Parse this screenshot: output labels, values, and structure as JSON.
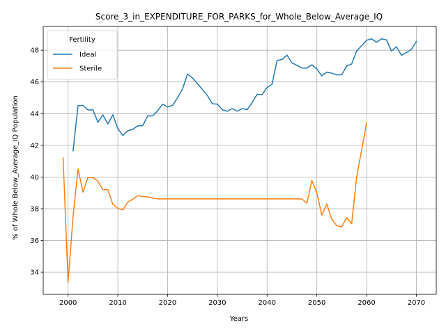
{
  "chart_data": {
    "type": "line",
    "title": "Score_3_in_EXPENDITURE_FOR_PARKS_for_Whole_Below_Average_IQ",
    "xlabel": "Years",
    "ylabel": "% of Whole Below_Average_IQ Population",
    "xlim": [
      1995,
      2074
    ],
    "ylim": [
      32.6,
      49.5
    ],
    "xticks": [
      2000,
      2010,
      2020,
      2030,
      2040,
      2050,
      2060,
      2070
    ],
    "yticks": [
      34,
      36,
      38,
      40,
      42,
      44,
      46,
      48
    ],
    "grid": true,
    "legend": {
      "title": "Fertility",
      "position": "upper-left"
    },
    "series": [
      {
        "name": "Ideal",
        "color": "#1f77b4",
        "x": [
          2001,
          2002,
          2003,
          2004,
          2005,
          2006,
          2007,
          2008,
          2009,
          2010,
          2011,
          2012,
          2013,
          2014,
          2015,
          2016,
          2017,
          2018,
          2019,
          2020,
          2021,
          2022,
          2023,
          2024,
          2025,
          2026,
          2027,
          2028,
          2029,
          2030,
          2031,
          2032,
          2033,
          2034,
          2035,
          2036,
          2037,
          2038,
          2039,
          2040,
          2041,
          2042,
          2043,
          2044,
          2045,
          2046,
          2047,
          2048,
          2049,
          2050,
          2051,
          2052,
          2053,
          2054,
          2055,
          2056,
          2057,
          2058,
          2059,
          2060,
          2061,
          2062,
          2063,
          2064,
          2065,
          2066,
          2067,
          2068,
          2069,
          2070
        ],
        "values": [
          41.65,
          44.5,
          44.52,
          44.23,
          44.24,
          43.45,
          43.92,
          43.35,
          43.93,
          43.05,
          42.62,
          42.92,
          43.01,
          43.23,
          43.24,
          43.85,
          43.86,
          44.18,
          44.6,
          44.42,
          44.52,
          45.0,
          45.55,
          46.5,
          46.25,
          45.9,
          45.52,
          45.15,
          44.62,
          44.6,
          44.25,
          44.15,
          44.32,
          44.15,
          44.32,
          44.25,
          44.7,
          45.22,
          45.2,
          45.65,
          45.85,
          47.35,
          47.42,
          47.69,
          47.2,
          47.05,
          46.88,
          46.87,
          47.08,
          46.82,
          46.38,
          46.62,
          46.55,
          46.45,
          46.45,
          47.0,
          47.13,
          47.95,
          48.28,
          48.63,
          48.72,
          48.5,
          48.72,
          48.65,
          47.95,
          48.22,
          47.68,
          47.85,
          48.05,
          48.55
        ]
      },
      {
        "name": "Sterile",
        "color": "#ff7f0e",
        "x": [
          1999,
          2000,
          2001,
          2002,
          2003,
          2004,
          2005,
          2006,
          2007,
          2008,
          2009,
          2010,
          2011,
          2012,
          2013,
          2014,
          2015,
          2016,
          2017,
          2018,
          2019,
          2020,
          2021,
          2022,
          2023,
          2024,
          2025,
          2026,
          2027,
          2028,
          2029,
          2030,
          2031,
          2032,
          2033,
          2034,
          2035,
          2036,
          2037,
          2038,
          2039,
          2040,
          2041,
          2042,
          2043,
          2044,
          2045,
          2046,
          2047,
          2048,
          2049,
          2050,
          2051,
          2052,
          2053,
          2054,
          2055,
          2056,
          2057,
          2058,
          2059,
          2060
        ],
        "values": [
          41.2,
          33.35,
          37.5,
          40.5,
          39.05,
          39.98,
          39.98,
          39.72,
          39.2,
          39.2,
          38.27,
          38.03,
          37.92,
          38.42,
          38.6,
          38.82,
          38.77,
          38.75,
          38.68,
          38.62,
          38.62,
          38.62,
          38.62,
          38.62,
          38.62,
          38.62,
          38.62,
          38.62,
          38.62,
          38.62,
          38.62,
          38.62,
          38.62,
          38.62,
          38.62,
          38.62,
          38.62,
          38.62,
          38.62,
          38.62,
          38.62,
          38.62,
          38.62,
          38.62,
          38.62,
          38.62,
          38.62,
          38.62,
          38.62,
          38.35,
          39.78,
          39.0,
          37.6,
          38.3,
          37.33,
          36.93,
          36.85,
          37.45,
          37.05,
          40.0,
          41.7,
          43.42
        ]
      }
    ]
  }
}
